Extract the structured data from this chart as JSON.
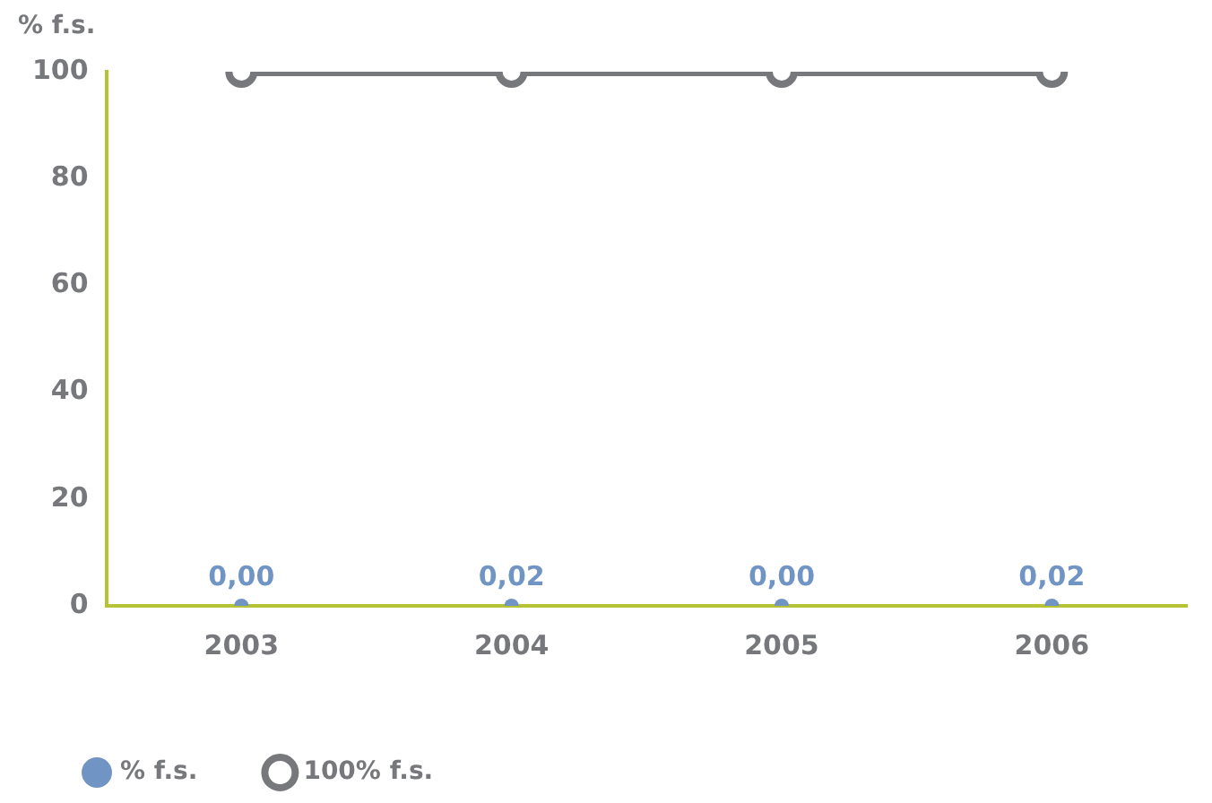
{
  "chart_data": {
    "type": "line",
    "ylabel": "% f.s.",
    "categories": [
      "2003",
      "2004",
      "2005",
      "2006"
    ],
    "series": [
      {
        "name": "% f.s.",
        "color": "#7094c4",
        "type": "scatter",
        "values": [
          0,
          0.02,
          0,
          0.02
        ],
        "value_labels": [
          "0,00",
          "0,02",
          "0,00",
          "0,02"
        ],
        "marker": "circle"
      },
      {
        "name": "100% f.s.",
        "color": "#77787b",
        "values": [
          100,
          100,
          100,
          100
        ],
        "marker": "circle",
        "line_style": "solid"
      }
    ],
    "ylim": [
      0,
      100
    ],
    "yticks": [
      0,
      20,
      40,
      60,
      80,
      100
    ],
    "grid": false,
    "legend": "bottom left"
  }
}
